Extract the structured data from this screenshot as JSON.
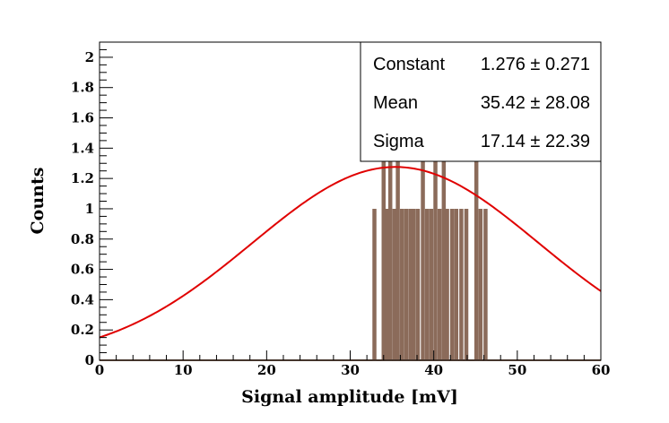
{
  "chart_data": {
    "type": "bar",
    "title": "",
    "xlabel": "Signal amplitude [mV]",
    "ylabel": "Counts",
    "xlim": [
      0,
      60
    ],
    "ylim": [
      0,
      2.1
    ],
    "x_ticks": [
      0,
      10,
      20,
      30,
      40,
      50,
      60
    ],
    "y_ticks": [
      0,
      0.2,
      0.4,
      0.6,
      0.8,
      1,
      1.2,
      1.4,
      1.6,
      1.8,
      2
    ],
    "grid": false,
    "bar_color": "#8b6b5a",
    "fit_color": "#e00000",
    "histogram": {
      "bins": [
        {
          "x": 32.9,
          "count": 1
        },
        {
          "x": 34.0,
          "count": 2
        },
        {
          "x": 34.4,
          "count": 1
        },
        {
          "x": 34.8,
          "count": 2
        },
        {
          "x": 35.3,
          "count": 1
        },
        {
          "x": 35.7,
          "count": 2
        },
        {
          "x": 36.2,
          "count": 1
        },
        {
          "x": 36.7,
          "count": 1
        },
        {
          "x": 37.2,
          "count": 1
        },
        {
          "x": 37.6,
          "count": 1
        },
        {
          "x": 38.1,
          "count": 1
        },
        {
          "x": 38.7,
          "count": 2
        },
        {
          "x": 39.2,
          "count": 1
        },
        {
          "x": 39.7,
          "count": 1
        },
        {
          "x": 40.2,
          "count": 2
        },
        {
          "x": 40.7,
          "count": 1
        },
        {
          "x": 41.2,
          "count": 2
        },
        {
          "x": 41.6,
          "count": 1
        },
        {
          "x": 42.2,
          "count": 1
        },
        {
          "x": 42.7,
          "count": 1
        },
        {
          "x": 43.3,
          "count": 1
        },
        {
          "x": 43.9,
          "count": 1
        },
        {
          "x": 45.1,
          "count": 2
        },
        {
          "x": 45.6,
          "count": 1
        },
        {
          "x": 46.2,
          "count": 1
        }
      ]
    },
    "fit": {
      "function": "gaus",
      "constant": 1.276,
      "mean": 35.42,
      "sigma": 17.14
    },
    "stats_box": {
      "legend_position": "top-right",
      "rows": [
        {
          "name": "Constant",
          "value": "1.276 ± 0.271"
        },
        {
          "name": "Mean",
          "value": "35.42 ± 28.08"
        },
        {
          "name": "Sigma",
          "value": "17.14 ± 22.39"
        }
      ]
    }
  }
}
